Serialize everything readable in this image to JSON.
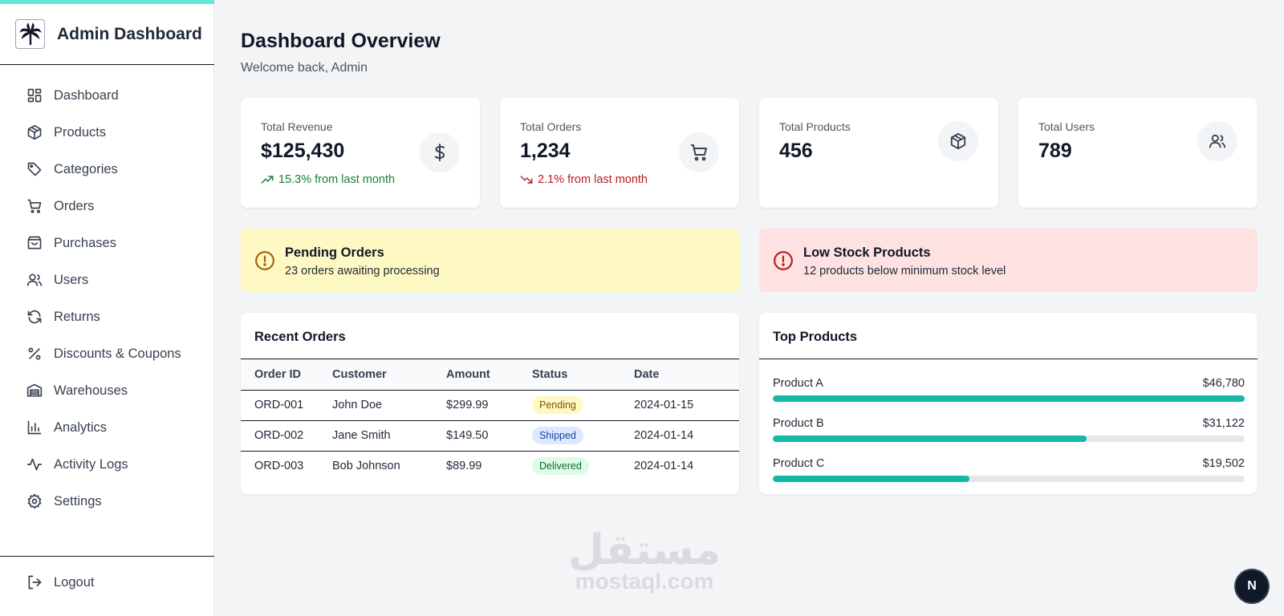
{
  "brand": {
    "title": "Admin Dashboard",
    "logo_icon": "palm-tree-icon"
  },
  "sidebar": {
    "items": [
      {
        "label": "Dashboard",
        "icon": "layout-grid-icon"
      },
      {
        "label": "Products",
        "icon": "box-icon"
      },
      {
        "label": "Categories",
        "icon": "tag-icon"
      },
      {
        "label": "Orders",
        "icon": "cart-icon"
      },
      {
        "label": "Purchases",
        "icon": "shopping-bag-icon"
      },
      {
        "label": "Users",
        "icon": "users-icon"
      },
      {
        "label": "Returns",
        "icon": "refresh-icon"
      },
      {
        "label": "Discounts & Coupons",
        "icon": "percent-icon"
      },
      {
        "label": "Warehouses",
        "icon": "warehouse-icon"
      },
      {
        "label": "Analytics",
        "icon": "bar-chart-icon"
      },
      {
        "label": "Activity Logs",
        "icon": "activity-icon"
      },
      {
        "label": "Settings",
        "icon": "gear-icon"
      }
    ],
    "logout": {
      "label": "Logout",
      "icon": "logout-icon"
    }
  },
  "header": {
    "title": "Dashboard Overview",
    "subtitle": "Welcome back, Admin"
  },
  "stats": [
    {
      "label": "Total Revenue",
      "value": "$125,430",
      "trend": "15.3% from last month",
      "trend_direction": "up",
      "icon": "dollar-icon"
    },
    {
      "label": "Total Orders",
      "value": "1,234",
      "trend": "2.1% from last month",
      "trend_direction": "down",
      "icon": "cart-icon"
    },
    {
      "label": "Total Products",
      "value": "456",
      "icon": "box-icon"
    },
    {
      "label": "Total Users",
      "value": "789",
      "icon": "users-icon"
    }
  ],
  "alerts": {
    "pending": {
      "title": "Pending Orders",
      "text": "23 orders awaiting processing",
      "color": "#fef9c3",
      "icon_color": "#a16207"
    },
    "low_stock": {
      "title": "Low Stock Products",
      "text": "12 products below minimum stock level",
      "color": "#fee2e2",
      "icon_color": "#b91c1c"
    }
  },
  "recent_orders": {
    "title": "Recent Orders",
    "columns": [
      "Order ID",
      "Customer",
      "Amount",
      "Status",
      "Date"
    ],
    "rows": [
      {
        "id": "ORD-001",
        "customer": "John Doe",
        "amount": "$299.99",
        "status": "Pending",
        "date": "2024-01-15"
      },
      {
        "id": "ORD-002",
        "customer": "Jane Smith",
        "amount": "$149.50",
        "status": "Shipped",
        "date": "2024-01-14"
      },
      {
        "id": "ORD-003",
        "customer": "Bob Johnson",
        "amount": "$89.99",
        "status": "Delivered",
        "date": "2024-01-14"
      }
    ],
    "status_colors": {
      "Pending": {
        "bg": "#fef9c3",
        "fg": "#854d0e"
      },
      "Shipped": {
        "bg": "#dbeafe",
        "fg": "#1e40af"
      },
      "Delivered": {
        "bg": "#dcfce7",
        "fg": "#166534"
      }
    }
  },
  "top_products": {
    "title": "Top Products",
    "accent": "#14b8a6",
    "items": [
      {
        "name": "Product A",
        "value": "$46,780",
        "share": 1.0
      },
      {
        "name": "Product B",
        "value": "$31,122",
        "share": 0.665
      },
      {
        "name": "Product C",
        "value": "$19,502",
        "share": 0.417
      }
    ]
  },
  "watermark": {
    "arabic": "مستقل",
    "latin": "mostaql.com"
  },
  "corner_button": {
    "label": "N"
  }
}
